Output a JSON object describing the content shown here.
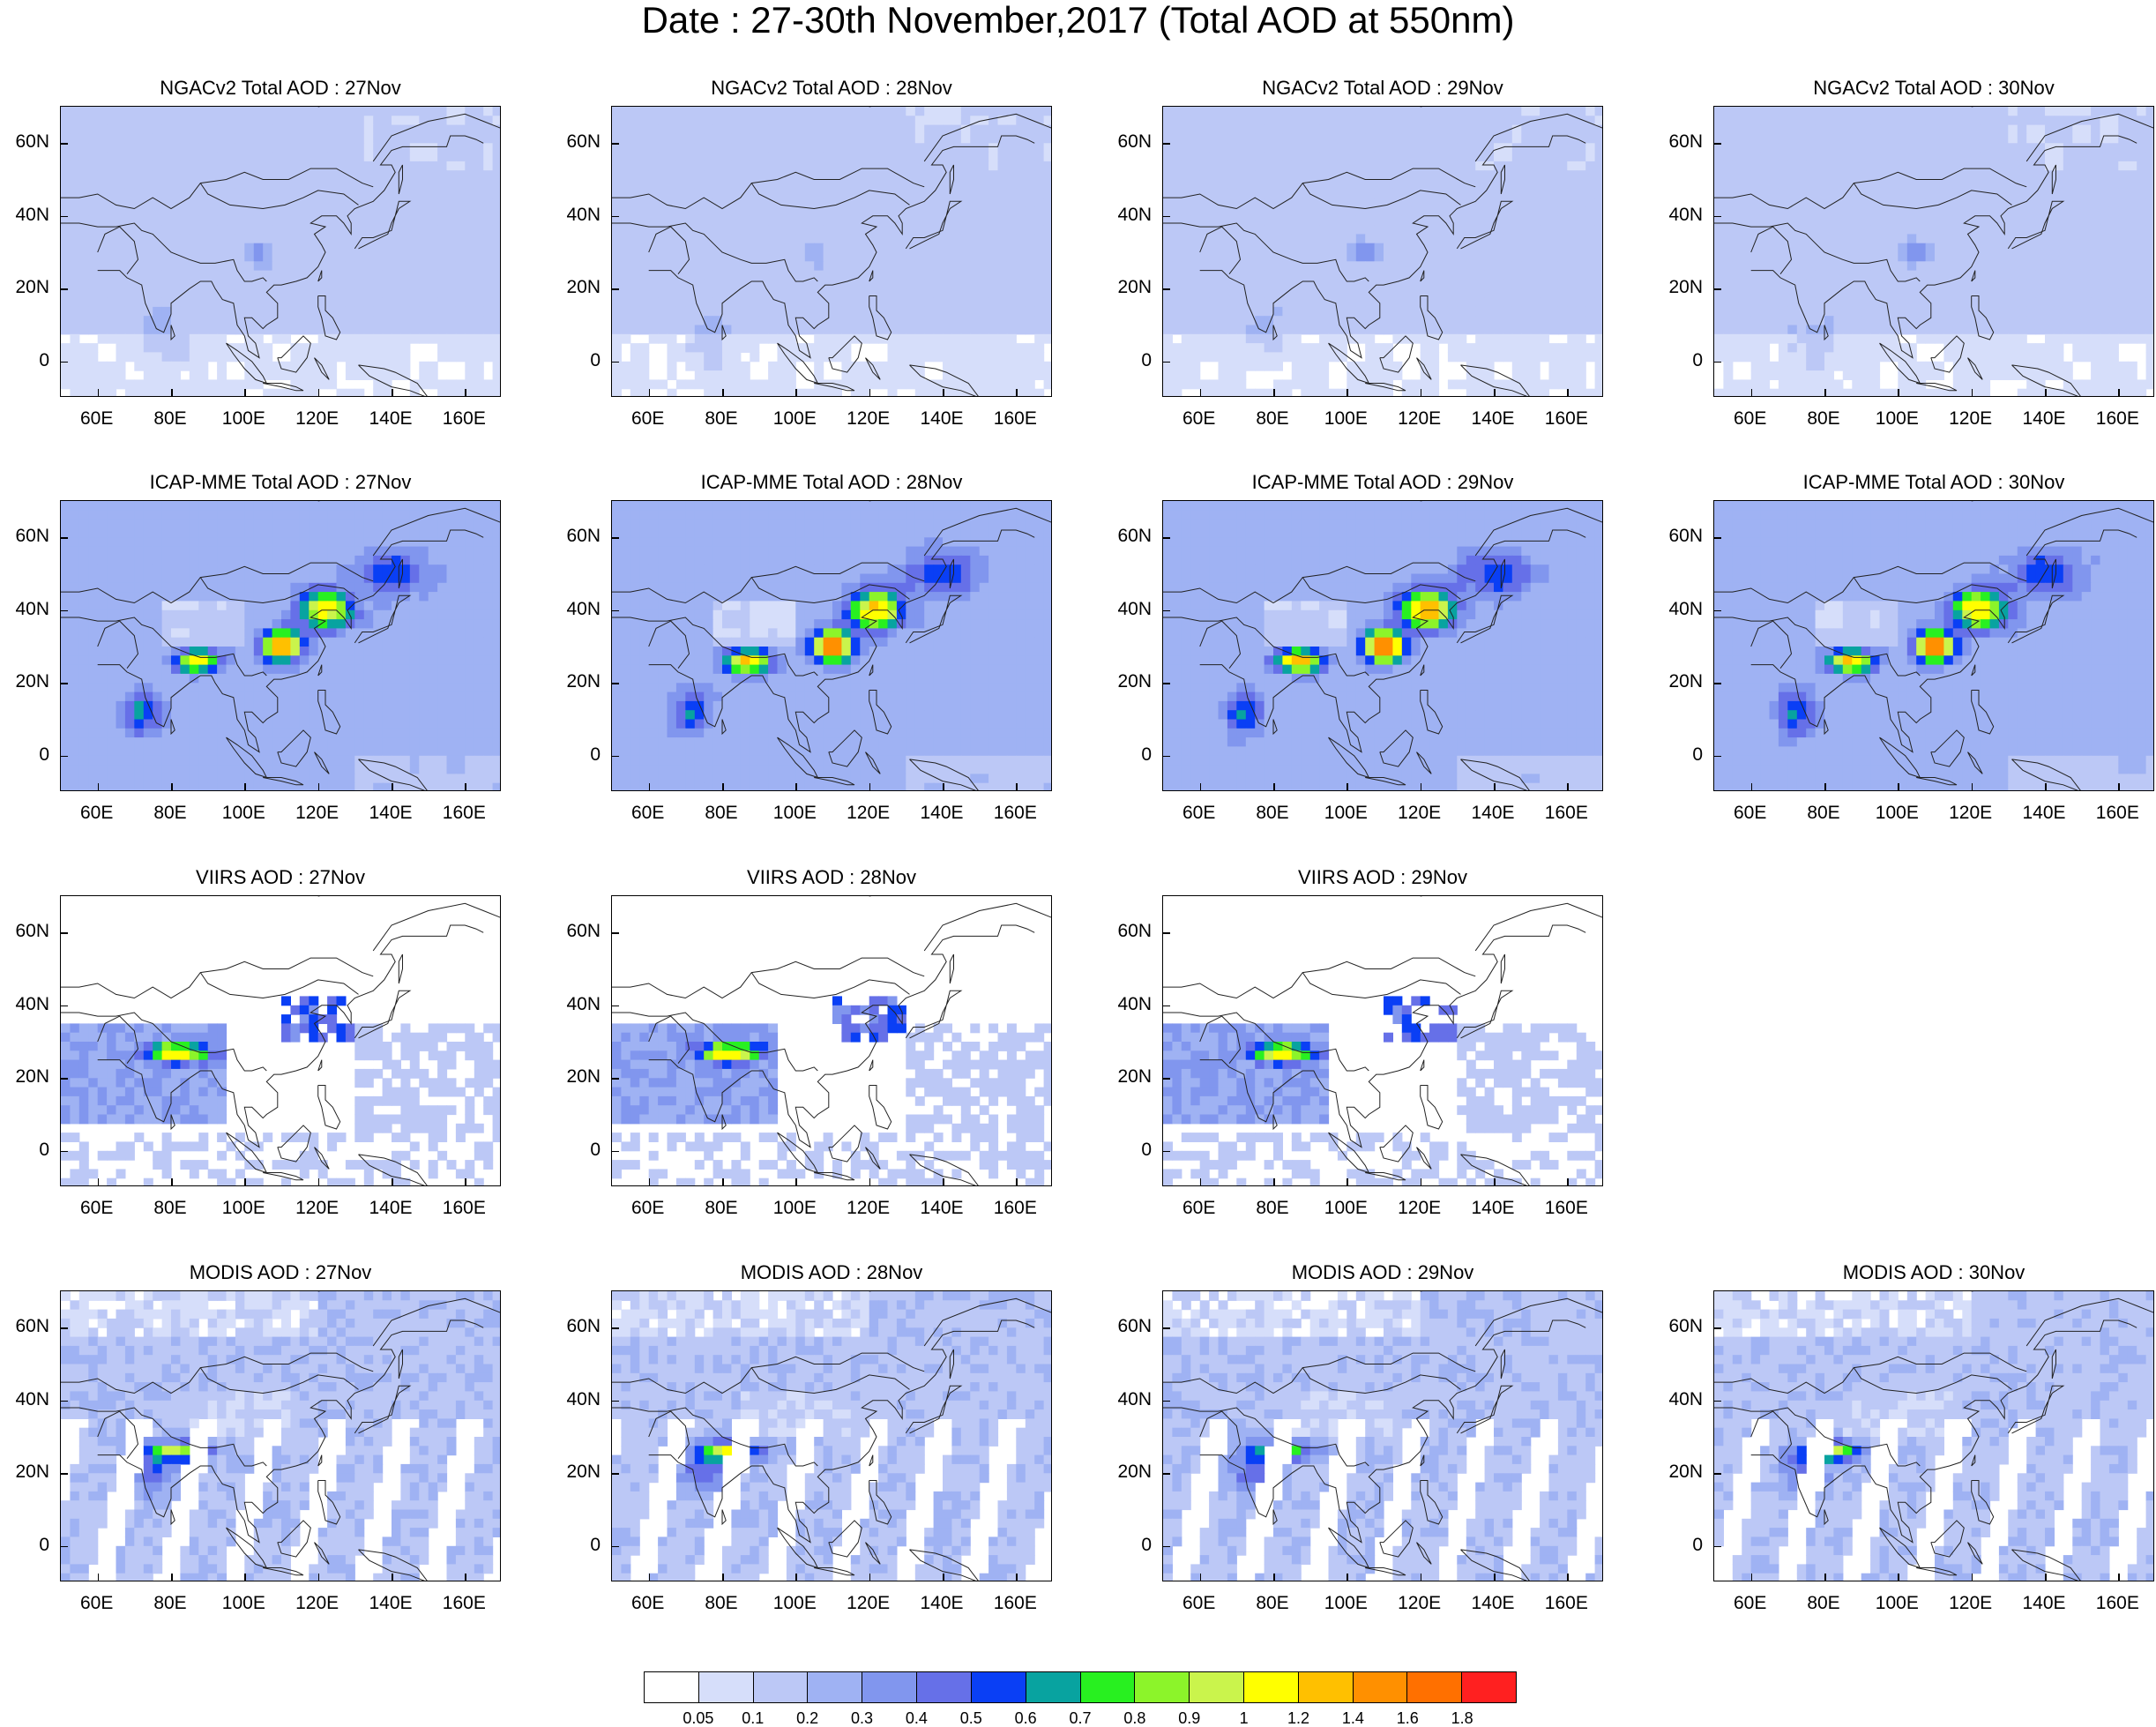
{
  "title": "Date : 27-30th November,2017 (Total AOD at 550nm)",
  "lat_labels": [
    "60N",
    "40N",
    "20N",
    "0"
  ],
  "lon_labels": [
    "60E",
    "80E",
    "100E",
    "120E",
    "140E",
    "160E"
  ],
  "rows": [
    {
      "model": "NGACv2",
      "fill": "smooth",
      "panels": [
        {
          "title": "NGACv2 Total AOD : 27Nov",
          "intensity": 1
        },
        {
          "title": "NGACv2 Total AOD : 28Nov",
          "intensity": 1
        },
        {
          "title": "NGACv2 Total AOD : 29Nov",
          "intensity": 1.2
        },
        {
          "title": "NGACv2 Total AOD : 30Nov",
          "intensity": 1.3
        }
      ]
    },
    {
      "model": "ICAP-MME",
      "fill": "smooth-strong",
      "panels": [
        {
          "title": "ICAP-MME Total AOD : 27Nov",
          "intensity": 2
        },
        {
          "title": "ICAP-MME Total AOD : 28Nov",
          "intensity": 2.3
        },
        {
          "title": "ICAP-MME Total AOD : 29Nov",
          "intensity": 2.4
        },
        {
          "title": "ICAP-MME Total AOD : 30Nov",
          "intensity": 2.2
        }
      ]
    },
    {
      "model": "VIIRS",
      "fill": "sparse",
      "panels": [
        {
          "title": "VIIRS AOD : 27Nov",
          "intensity": 1
        },
        {
          "title": "VIIRS AOD : 28Nov",
          "intensity": 1
        },
        {
          "title": "VIIRS AOD : 29Nov",
          "intensity": 1
        }
      ]
    },
    {
      "model": "MODIS",
      "fill": "swaths",
      "panels": [
        {
          "title": "MODIS AOD : 27Nov",
          "intensity": 1
        },
        {
          "title": "MODIS AOD : 28Nov",
          "intensity": 1.1
        },
        {
          "title": "MODIS AOD : 29Nov",
          "intensity": 1
        },
        {
          "title": "MODIS AOD : 30Nov",
          "intensity": 1
        }
      ]
    }
  ],
  "colorbar": {
    "labels": [
      "0.05",
      "0.1",
      "0.2",
      "0.3",
      "0.4",
      "0.5",
      "0.6",
      "0.7",
      "0.8",
      "0.9",
      "1",
      "1.2",
      "1.4",
      "1.6",
      "1.8"
    ],
    "colors": [
      "#ffffff",
      "#d6defa",
      "#bcc8f6",
      "#9fb2f3",
      "#8196ee",
      "#6670e8",
      "#0a3ff5",
      "#08a3a0",
      "#28f020",
      "#8cf42a",
      "#caf44c",
      "#ffff00",
      "#ffc000",
      "#ff9000",
      "#ff7000",
      "#ff2020"
    ]
  }
}
